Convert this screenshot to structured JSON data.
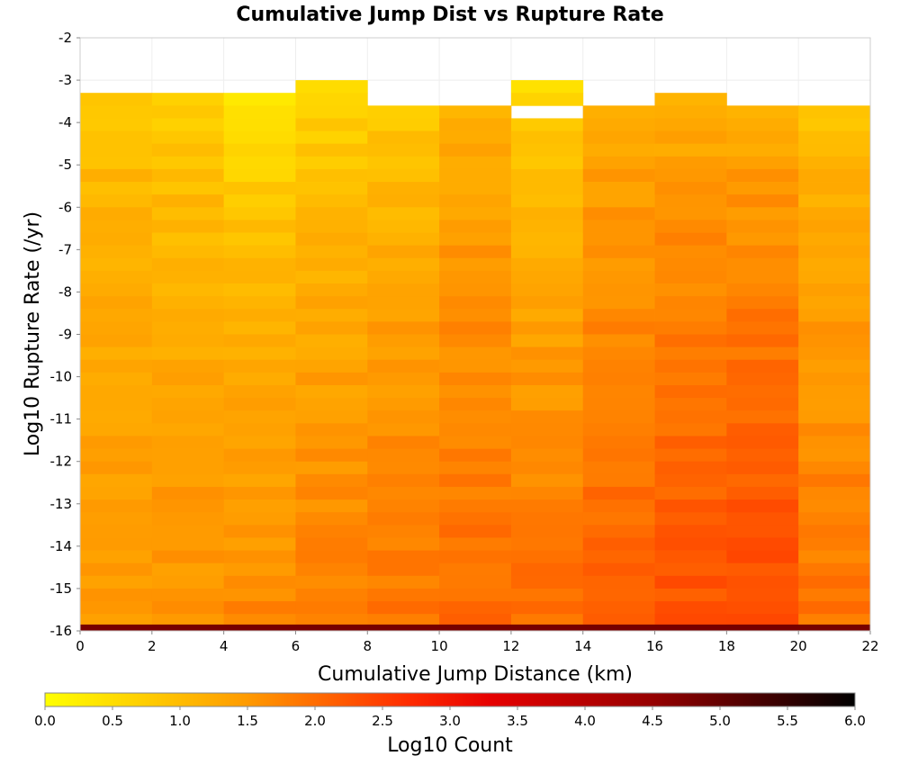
{
  "chart_data": {
    "type": "heatmap",
    "title": "Cumulative Jump Dist vs Rupture Rate",
    "xlabel": "Cumulative Jump Distance (km)",
    "ylabel": "Log10 Rupture Rate (/yr)",
    "xlim": [
      0,
      22
    ],
    "ylim": [
      -16,
      -2
    ],
    "x_ticks": [
      "0",
      "2",
      "4",
      "6",
      "8",
      "10",
      "12",
      "14",
      "16",
      "18",
      "20",
      "22"
    ],
    "y_ticks": [
      "-2",
      "-3",
      "-4",
      "-5",
      "-6",
      "-7",
      "-8",
      "-9",
      "-10",
      "-11",
      "-12",
      "-13",
      "-14",
      "-15",
      "-16"
    ],
    "x_bin_edges": [
      0,
      2,
      4,
      6,
      8,
      10,
      12,
      14,
      16,
      18,
      20,
      22
    ],
    "y_bin_size": 0.3,
    "grid": true,
    "colorbar": {
      "label": "Log10 Count",
      "range": [
        0,
        6
      ],
      "ticks": [
        "0.0",
        "0.5",
        "1.0",
        "1.5",
        "2.0",
        "2.5",
        "3.0",
        "3.5",
        "4.0",
        "4.5",
        "5.0",
        "5.5",
        "6.0"
      ],
      "stops": [
        "#ffff00",
        "#ff9a00",
        "#ff2b00",
        "#e60000",
        "#960000",
        "#000000"
      ],
      "placement": "bottom"
    },
    "columns": [
      {
        "x_range": [
          0,
          2
        ],
        "y_top": -3.3,
        "top_value": 0.8,
        "bottom_value": 1.5
      },
      {
        "x_range": [
          2,
          4
        ],
        "y_top": -3.3,
        "top_value": 0.6,
        "bottom_value": 1.6
      },
      {
        "x_range": [
          4,
          6
        ],
        "y_top": -3.3,
        "top_value": 0.2,
        "bottom_value": 1.7
      },
      {
        "x_range": [
          6,
          8
        ],
        "y_top": -3.0,
        "top_value": 0.4,
        "bottom_value": 1.8
      },
      {
        "x_range": [
          8,
          10
        ],
        "y_top": -3.6,
        "top_value": 0.6,
        "bottom_value": 1.9
      },
      {
        "x_range": [
          10,
          12
        ],
        "y_top": -3.6,
        "top_value": 1.0,
        "bottom_value": 2.0
      },
      {
        "x_range": [
          12,
          14
        ],
        "y_top": -3.0,
        "top_value": 0.3,
        "bottom_value": 2.0,
        "gap": [
          -3.6,
          -3.9
        ]
      },
      {
        "x_range": [
          14,
          16
        ],
        "y_top": -3.6,
        "top_value": 1.1,
        "bottom_value": 2.1
      },
      {
        "x_range": [
          16,
          18
        ],
        "y_top": -3.3,
        "top_value": 1.0,
        "bottom_value": 2.3
      },
      {
        "x_range": [
          18,
          20
        ],
        "y_top": -3.6,
        "top_value": 1.0,
        "bottom_value": 2.4
      },
      {
        "x_range": [
          20,
          22
        ],
        "y_top": -3.6,
        "top_value": 0.8,
        "bottom_value": 1.9
      }
    ],
    "bottom_row": {
      "y_range": [
        -16.0,
        -15.85
      ],
      "value": 4.8
    }
  }
}
